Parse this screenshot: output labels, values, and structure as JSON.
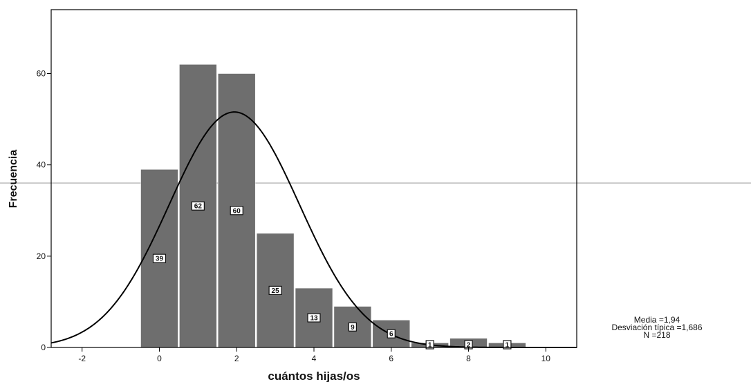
{
  "chart_data": {
    "type": "bar",
    "subtype": "histogram-with-normal-curve",
    "xlabel": "cuántos hijas/os",
    "ylabel": "Frecuencia",
    "xlim": [
      -2.8,
      10.8
    ],
    "ylim": [
      0,
      74
    ],
    "x_ticks": [
      -2,
      0,
      2,
      4,
      6,
      8,
      10
    ],
    "y_ticks": [
      0,
      20,
      40,
      60
    ],
    "categories": [
      "0",
      "1",
      "2",
      "3",
      "4",
      "5",
      "6",
      "7",
      "8",
      "9"
    ],
    "values": [
      39,
      62,
      60,
      25,
      13,
      9,
      6,
      1,
      2,
      1
    ],
    "bar_labels": [
      "39",
      "62",
      "60",
      "25",
      "13",
      "9",
      "6",
      "1",
      "2",
      "1"
    ],
    "bar_color": "#6e6e6e",
    "curve": {
      "type": "normal",
      "mean": 1.94,
      "sd": 1.686,
      "n": 218,
      "bin_width": 1
    },
    "grid": false,
    "legend": "none",
    "stats_text": [
      "Media =1,94",
      "Desviación típica =1,686",
      "N =218"
    ]
  }
}
